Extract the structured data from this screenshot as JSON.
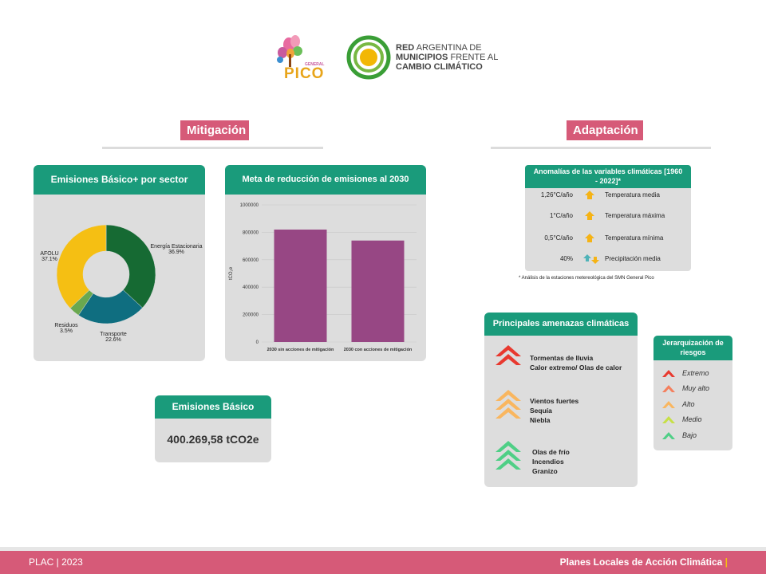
{
  "header": {
    "logo_pico_top": "GENERAL",
    "logo_pico_main": "PICO",
    "network_line1_bold": "RED",
    "network_line1_rest": "ARGENTINA DE",
    "network_line2_bold": "MUNICIPIOS",
    "network_line2_rest": "FRENTE AL",
    "network_line3": "CAMBIO CLIMÁTICO"
  },
  "sections": {
    "mitigation": "Mitigación",
    "adaptation": "Adaptación"
  },
  "emissions_sector": {
    "title": "Emisiones Básico+ por sector",
    "labels": [
      {
        "name": "Energía Estacionaria",
        "pct": "36.9%"
      },
      {
        "name": "Transporte",
        "pct": "22.6%"
      },
      {
        "name": "Residuos",
        "pct": "3.5%"
      },
      {
        "name": "AFOLU",
        "pct": "37.1%"
      }
    ]
  },
  "reduction": {
    "title": "Meta de reducción de emisiones al 2030"
  },
  "basic": {
    "title": "Emisiones Básico",
    "value": "400.269,58 tCO2e"
  },
  "anomalies": {
    "title": "Anomalías de las variables climáticas [1960 - 2022]*",
    "rows": [
      {
        "value": "1,26°C/año",
        "label": "Temperatura media"
      },
      {
        "value": "1°C/año",
        "label": "Temperatura máxima"
      },
      {
        "value": "0,5°C/año",
        "label": "Temperatura mínima"
      },
      {
        "value": "40%",
        "label": "Precipitación media"
      }
    ],
    "note": "* Análisis de la estaciones metereológica del SMN General Pico"
  },
  "threats": {
    "title": "Principales amenazas climáticas",
    "groups": [
      {
        "items": [
          "Tormentas de lluvia",
          "Calor extremo/ Olas de calor"
        ],
        "color": "#e8392f"
      },
      {
        "items": [
          "Vientos fuertes",
          "Sequía",
          "Niebla"
        ],
        "color": "#f9b65f"
      },
      {
        "items": [
          "Olas de frío",
          "Incendios",
          "Granizo"
        ],
        "color": "#4fcf86"
      }
    ]
  },
  "risk_scale": {
    "title": "Jerarquización de riesgos",
    "levels": [
      {
        "label": "Extremo",
        "color": "#e8392f"
      },
      {
        "label": "Muy alto",
        "color": "#f47f5d"
      },
      {
        "label": "Alto",
        "color": "#f9b65f"
      },
      {
        "label": "Medio",
        "color": "#c7e046"
      },
      {
        "label": "Bajo",
        "color": "#4fcf86"
      }
    ]
  },
  "footer": {
    "left": "PLAC | 2023",
    "right": "Planes Locales de Acción Climática",
    "right_mark": "|"
  },
  "chart_data": [
    {
      "type": "pie",
      "title": "Emisiones Básico+ por sector",
      "categories": [
        "Energía Estacionaria",
        "Transporte",
        "Residuos",
        "AFOLU"
      ],
      "values": [
        36.9,
        22.6,
        3.5,
        37.1
      ],
      "colors": [
        "#166a33",
        "#0f6e80",
        "#6aa84f",
        "#f5bf13"
      ]
    },
    {
      "type": "bar",
      "title": "Meta de reducción de emisiones al 2030",
      "categories": [
        "2030 sin acciones de mitigación",
        "2030 con acciones de mitigación"
      ],
      "values": [
        820000,
        740000
      ],
      "ylabel": "tCO₂e",
      "ylim": [
        0,
        1000000
      ],
      "yticks": [
        0,
        200000,
        400000,
        600000,
        800000,
        1000000
      ],
      "color": "#974784",
      "grid": true
    }
  ]
}
